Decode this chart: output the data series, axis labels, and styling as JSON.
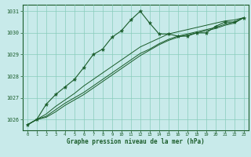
{
  "title": "Graphe pression niveau de la mer (hPa)",
  "background_color": "#c8eaea",
  "plot_bg_color": "#c8eaea",
  "grid_color": "#88ccbb",
  "line_color": "#1a5c2a",
  "text_color": "#1a5c2a",
  "xlim": [
    -0.5,
    23.5
  ],
  "ylim": [
    1025.5,
    1031.3
  ],
  "yticks": [
    1026,
    1027,
    1028,
    1029,
    1030,
    1031
  ],
  "xticks": [
    0,
    1,
    2,
    3,
    4,
    5,
    6,
    7,
    8,
    9,
    10,
    11,
    12,
    13,
    14,
    15,
    16,
    17,
    18,
    19,
    20,
    21,
    22,
    23
  ],
  "series1": [
    1025.75,
    1026.0,
    1026.7,
    1027.15,
    1027.5,
    1027.85,
    1028.4,
    1029.0,
    1029.25,
    1029.8,
    1030.1,
    1030.6,
    1031.0,
    1030.45,
    1029.95,
    1029.95,
    1029.85,
    1029.85,
    1030.0,
    1030.0,
    1030.3,
    1030.5,
    1030.5,
    1030.7
  ],
  "series2": [
    1025.75,
    1026.0,
    1026.25,
    1026.6,
    1026.9,
    1027.2,
    1027.55,
    1027.85,
    1028.15,
    1028.45,
    1028.75,
    1029.05,
    1029.35,
    1029.55,
    1029.75,
    1029.95,
    1030.05,
    1030.15,
    1030.25,
    1030.35,
    1030.45,
    1030.55,
    1030.6,
    1030.7
  ],
  "series3": [
    1025.75,
    1026.0,
    1026.15,
    1026.45,
    1026.75,
    1027.0,
    1027.25,
    1027.55,
    1027.85,
    1028.15,
    1028.45,
    1028.75,
    1029.05,
    1029.25,
    1029.5,
    1029.7,
    1029.85,
    1029.95,
    1030.05,
    1030.15,
    1030.25,
    1030.4,
    1030.5,
    1030.7
  ],
  "series4": [
    1025.75,
    1026.0,
    1026.1,
    1026.35,
    1026.65,
    1026.9,
    1027.15,
    1027.45,
    1027.75,
    1028.05,
    1028.35,
    1028.65,
    1028.95,
    1029.2,
    1029.45,
    1029.65,
    1029.8,
    1029.9,
    1030.0,
    1030.1,
    1030.2,
    1030.35,
    1030.45,
    1030.7
  ]
}
